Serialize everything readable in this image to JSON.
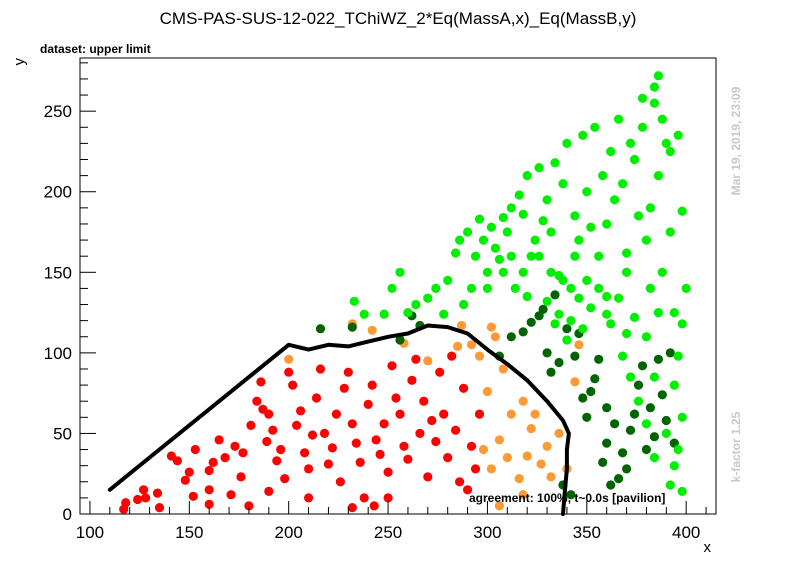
{
  "chart_data": {
    "type": "scatter",
    "title": "CMS-PAS-SUS-12-022_TChiWZ_2*Eq(MassA,x)_Eq(MassB,y)",
    "xlabel": "x",
    "ylabel": "y",
    "xlim": [
      95,
      415
    ],
    "ylim": [
      0,
      283
    ],
    "xticks": [
      "100",
      "150",
      "200",
      "250",
      "300",
      "350",
      "400"
    ],
    "yticks": [
      "0",
      "50",
      "100",
      "150",
      "200",
      "250"
    ],
    "grid": false,
    "dataset_label": "dataset: upper limit",
    "agreement_label": "agreement: 100%, t~0.0s [pavilion]",
    "date_label": "Mar 19, 2019, 23:09",
    "kfactor_label": "k-factor 1.25",
    "colors": {
      "red": "#ff0000",
      "orange": "#ff9933",
      "darkgreen": "#006400",
      "green": "#00ee00",
      "contour": "#000000"
    },
    "series": [
      {
        "color_key": "red",
        "points": [
          [
            117,
            3
          ],
          [
            118,
            7
          ],
          [
            124,
            9
          ],
          [
            127,
            15
          ],
          [
            128,
            10
          ],
          [
            134,
            13
          ],
          [
            141,
            36
          ],
          [
            144,
            33
          ],
          [
            148,
            21
          ],
          [
            150,
            26
          ],
          [
            152,
            11
          ],
          [
            153,
            40
          ],
          [
            160,
            27
          ],
          [
            160,
            15
          ],
          [
            162,
            32
          ],
          [
            165,
            46
          ],
          [
            168,
            35
          ],
          [
            171,
            12
          ],
          [
            173,
            42
          ],
          [
            176,
            23
          ],
          [
            177,
            38
          ],
          [
            180,
            5
          ],
          [
            181,
            55
          ],
          [
            184,
            70
          ],
          [
            186,
            82
          ],
          [
            187,
            65
          ],
          [
            189,
            45
          ],
          [
            190,
            62
          ],
          [
            192,
            52
          ],
          [
            194,
            33
          ],
          [
            196,
            40
          ],
          [
            198,
            22
          ],
          [
            200,
            88
          ],
          [
            202,
            80
          ],
          [
            204,
            55
          ],
          [
            206,
            64
          ],
          [
            208,
            38
          ],
          [
            210,
            28
          ],
          [
            212,
            49
          ],
          [
            214,
            72
          ],
          [
            216,
            90
          ],
          [
            218,
            50
          ],
          [
            220,
            31
          ],
          [
            222,
            41
          ],
          [
            224,
            62
          ],
          [
            226,
            20
          ],
          [
            228,
            78
          ],
          [
            230,
            88
          ],
          [
            232,
            56
          ],
          [
            234,
            44
          ],
          [
            236,
            32
          ],
          [
            238,
            10
          ],
          [
            240,
            68
          ],
          [
            242,
            80
          ],
          [
            244,
            46
          ],
          [
            246,
            37
          ],
          [
            248,
            56
          ],
          [
            250,
            26
          ],
          [
            252,
            92
          ],
          [
            254,
            72
          ],
          [
            256,
            62
          ],
          [
            258,
            42
          ],
          [
            260,
            34
          ],
          [
            262,
            83
          ],
          [
            264,
            96
          ],
          [
            266,
            50
          ],
          [
            268,
            70
          ],
          [
            270,
            23
          ],
          [
            272,
            58
          ],
          [
            274,
            45
          ],
          [
            276,
            88
          ],
          [
            278,
            62
          ],
          [
            280,
            35
          ],
          [
            282,
            98
          ],
          [
            284,
            52
          ],
          [
            286,
            20
          ],
          [
            288,
            78
          ],
          [
            290,
            15
          ],
          [
            292,
            42
          ],
          [
            294,
            28
          ],
          [
            296,
            62
          ],
          [
            250,
            10
          ],
          [
            243,
            5
          ],
          [
            232,
            4
          ],
          [
            210,
            10
          ],
          [
            190,
            14
          ],
          [
            160,
            6
          ],
          [
            135,
            4
          ]
        ]
      },
      {
        "color_key": "orange",
        "points": [
          [
            200,
            96
          ],
          [
            232,
            118
          ],
          [
            242,
            114
          ],
          [
            258,
            106
          ],
          [
            270,
            95
          ],
          [
            285,
            104
          ],
          [
            287,
            117
          ],
          [
            292,
            105
          ],
          [
            296,
            98
          ],
          [
            300,
            76
          ],
          [
            302,
            116
          ],
          [
            304,
            110
          ],
          [
            306,
            46
          ],
          [
            308,
            90
          ],
          [
            310,
            35
          ],
          [
            312,
            62
          ],
          [
            316,
            22
          ],
          [
            318,
            70
          ],
          [
            320,
            36
          ],
          [
            322,
            53
          ],
          [
            324,
            62
          ],
          [
            327,
            31
          ],
          [
            330,
            42
          ],
          [
            332,
            23
          ],
          [
            336,
            50
          ],
          [
            340,
            28
          ],
          [
            344,
            82
          ],
          [
            346,
            105
          ],
          [
            318,
            12
          ],
          [
            306,
            5
          ],
          [
            302,
            28
          ],
          [
            298,
            40
          ]
        ]
      },
      {
        "color_key": "darkgreen",
        "points": [
          [
            216,
            115
          ],
          [
            232,
            116
          ],
          [
            256,
            108
          ],
          [
            262,
            123
          ],
          [
            266,
            117
          ],
          [
            306,
            98
          ],
          [
            312,
            110
          ],
          [
            318,
            113
          ],
          [
            322,
            119
          ],
          [
            328,
            127
          ],
          [
            330,
            100
          ],
          [
            332,
            88
          ],
          [
            336,
            94
          ],
          [
            340,
            115
          ],
          [
            344,
            98
          ],
          [
            346,
            112
          ],
          [
            348,
            72
          ],
          [
            350,
            60
          ],
          [
            352,
            76
          ],
          [
            354,
            84
          ],
          [
            356,
            96
          ],
          [
            358,
            32
          ],
          [
            360,
            44
          ],
          [
            362,
            18
          ],
          [
            364,
            56
          ],
          [
            366,
            22
          ],
          [
            368,
            38
          ],
          [
            370,
            28
          ],
          [
            372,
            52
          ],
          [
            374,
            62
          ],
          [
            376,
            80
          ],
          [
            378,
            92
          ],
          [
            380,
            40
          ],
          [
            382,
            66
          ],
          [
            384,
            48
          ],
          [
            386,
            96
          ],
          [
            388,
            74
          ],
          [
            390,
            58
          ],
          [
            392,
            100
          ],
          [
            394,
            44
          ],
          [
            326,
            123
          ],
          [
            334,
            136
          ],
          [
            338,
            18
          ],
          [
            342,
            12
          ],
          [
            360,
            66
          ]
        ]
      },
      {
        "color_key": "green",
        "points": [
          [
            233,
            132
          ],
          [
            238,
            124
          ],
          [
            248,
            124
          ],
          [
            252,
            140
          ],
          [
            256,
            150
          ],
          [
            260,
            125
          ],
          [
            264,
            130
          ],
          [
            270,
            134
          ],
          [
            274,
            140
          ],
          [
            278,
            124
          ],
          [
            280,
            145
          ],
          [
            284,
            162
          ],
          [
            286,
            170
          ],
          [
            290,
            175
          ],
          [
            294,
            160
          ],
          [
            296,
            183
          ],
          [
            298,
            170
          ],
          [
            300,
            150
          ],
          [
            302,
            178
          ],
          [
            304,
            165
          ],
          [
            306,
            158
          ],
          [
            308,
            184
          ],
          [
            310,
            175
          ],
          [
            312,
            190
          ],
          [
            314,
            140
          ],
          [
            316,
            198
          ],
          [
            318,
            186
          ],
          [
            320,
            210
          ],
          [
            322,
            160
          ],
          [
            324,
            170
          ],
          [
            326,
            215
          ],
          [
            328,
            182
          ],
          [
            330,
            195
          ],
          [
            332,
            175
          ],
          [
            334,
            218
          ],
          [
            336,
            148
          ],
          [
            338,
            205
          ],
          [
            340,
            230
          ],
          [
            342,
            140
          ],
          [
            344,
            185
          ],
          [
            346,
            170
          ],
          [
            348,
            235
          ],
          [
            350,
            200
          ],
          [
            352,
            178
          ],
          [
            354,
            240
          ],
          [
            356,
            160
          ],
          [
            358,
            210
          ],
          [
            360,
            180
          ],
          [
            362,
            225
          ],
          [
            364,
            195
          ],
          [
            366,
            245
          ],
          [
            368,
            205
          ],
          [
            370,
            150
          ],
          [
            372,
            230
          ],
          [
            374,
            220
          ],
          [
            376,
            185
          ],
          [
            378,
            258
          ],
          [
            380,
            170
          ],
          [
            382,
            190
          ],
          [
            384,
            265
          ],
          [
            386,
            210
          ],
          [
            388,
            245
          ],
          [
            390,
            230
          ],
          [
            392,
            175
          ],
          [
            394,
            125
          ],
          [
            396,
            235
          ],
          [
            398,
            188
          ],
          [
            400,
            140
          ],
          [
            398,
            118
          ],
          [
            396,
            98
          ],
          [
            394,
            80
          ],
          [
            398,
            60
          ],
          [
            396,
            40
          ],
          [
            394,
            30
          ],
          [
            398,
            14
          ],
          [
            392,
            18
          ],
          [
            390,
            50
          ],
          [
            384,
            35
          ],
          [
            380,
            56
          ],
          [
            376,
            70
          ],
          [
            372,
            85
          ],
          [
            370,
            112
          ],
          [
            368,
            98
          ],
          [
            366,
            134
          ],
          [
            362,
            118
          ],
          [
            360,
            124
          ],
          [
            356,
            140
          ],
          [
            352,
            128
          ],
          [
            348,
            115
          ],
          [
            346,
            134
          ],
          [
            342,
            120
          ],
          [
            340,
            108
          ],
          [
            336,
            124
          ],
          [
            334,
            118
          ],
          [
            380,
            110
          ],
          [
            384,
            85
          ],
          [
            386,
            125
          ],
          [
            388,
            150
          ],
          [
            382,
            140
          ],
          [
            386,
            272
          ],
          [
            384,
            255
          ],
          [
            378,
            240
          ],
          [
            392,
            225
          ],
          [
            374,
            122
          ],
          [
            370,
            162
          ],
          [
            360,
            135
          ],
          [
            350,
            145
          ],
          [
            344,
            160
          ],
          [
            338,
            145
          ],
          [
            332,
            150
          ],
          [
            326,
            160
          ],
          [
            318,
            150
          ],
          [
            312,
            160
          ],
          [
            308,
            150
          ],
          [
            300,
            140
          ],
          [
            292,
            140
          ],
          [
            288,
            130
          ],
          [
            320,
            135
          ],
          [
            330,
            132
          ]
        ]
      }
    ],
    "contour": [
      [
        110,
        15
      ],
      [
        200,
        105
      ],
      [
        210,
        102
      ],
      [
        220,
        105
      ],
      [
        230,
        104
      ],
      [
        240,
        107
      ],
      [
        250,
        110
      ],
      [
        260,
        112
      ],
      [
        270,
        117
      ],
      [
        280,
        116
      ],
      [
        290,
        112
      ],
      [
        300,
        102
      ],
      [
        310,
        93
      ],
      [
        320,
        83
      ],
      [
        330,
        70
      ],
      [
        338,
        58
      ],
      [
        341,
        50
      ],
      [
        340,
        40
      ],
      [
        340,
        28
      ],
      [
        339,
        15
      ],
      [
        338,
        0
      ]
    ]
  }
}
